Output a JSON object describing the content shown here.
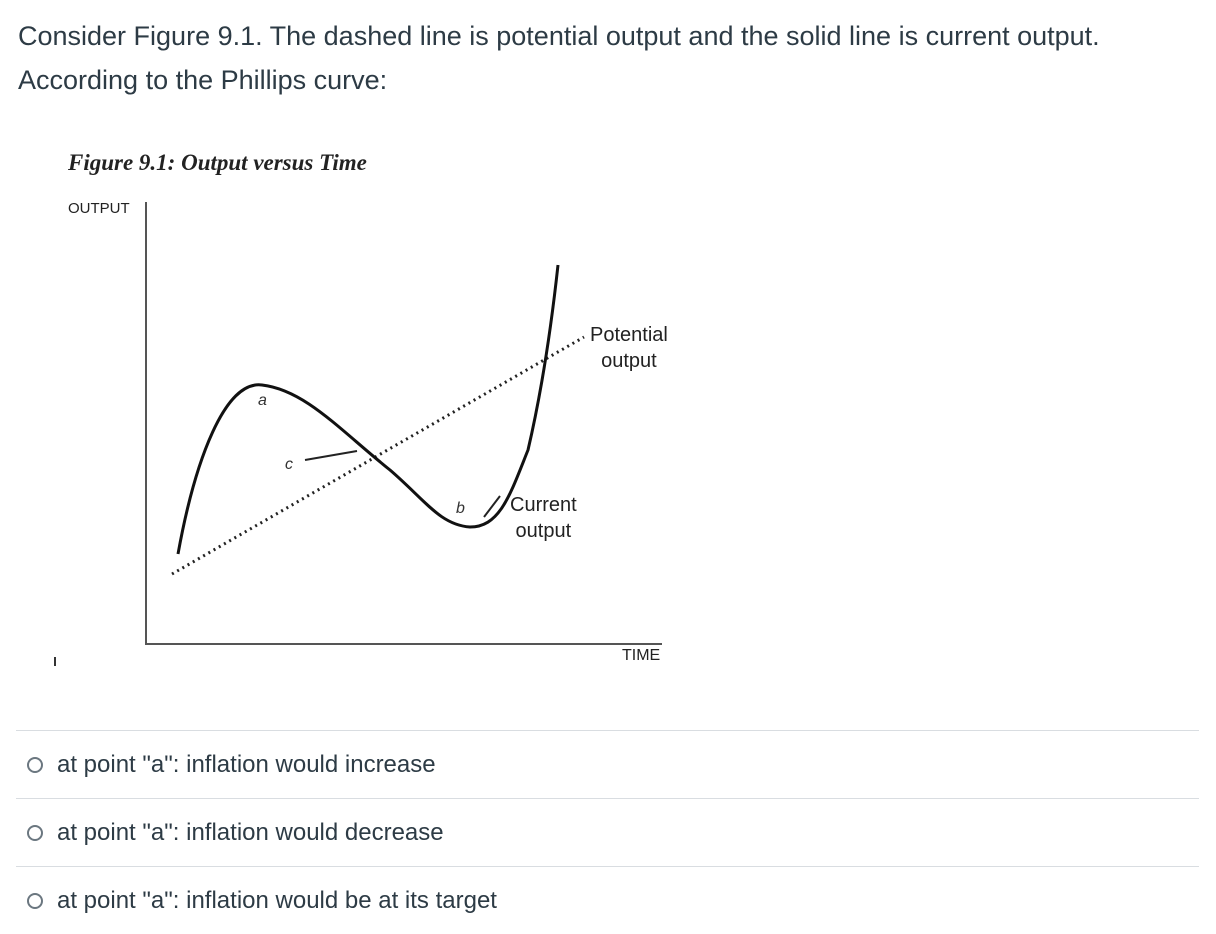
{
  "question": {
    "line1": "Consider Figure 9.1. The dashed line is potential output and the solid line is current output.",
    "line2": "According to the Phillips curve:"
  },
  "figure": {
    "title": "Figure 9.1: Output versus Time",
    "y_axis_label": "OUTPUT",
    "x_axis_label": "TIME",
    "points": {
      "a": "a",
      "b": "b",
      "c": "c"
    },
    "potential_label": [
      "Potential",
      "output"
    ],
    "current_label": [
      "Current",
      "output"
    ]
  },
  "options": [
    {
      "label": "at point \"a\": inflation would increase",
      "selected": false
    },
    {
      "label": "at point \"a\": inflation would decrease",
      "selected": false
    },
    {
      "label": "at point \"a\": inflation would be at its target",
      "selected": false
    }
  ],
  "colors": {
    "text": "#2d3b45",
    "divider": "#d9dde1",
    "radio_border": "#6b7780"
  }
}
